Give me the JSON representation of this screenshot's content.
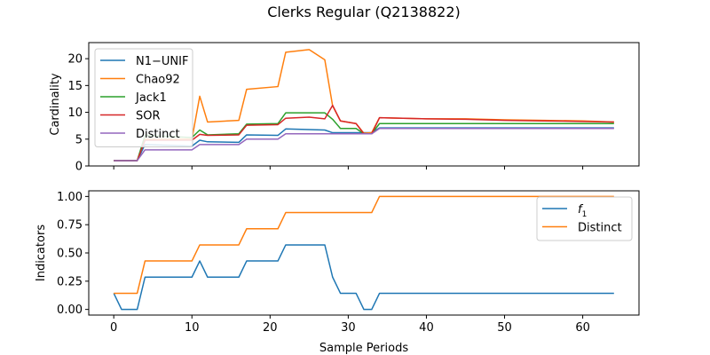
{
  "chart_data": {
    "title": "Clerks Regular (Q2138822)",
    "type": "line",
    "xlabel": "Sample Periods",
    "xlim": [
      -3.2,
      67.2
    ],
    "xticks": [
      0,
      10,
      20,
      30,
      40,
      50,
      60
    ],
    "panels": [
      {
        "ylabel": "Cardinality",
        "ylim": [
          0,
          23
        ],
        "yticks": [
          0,
          5,
          10,
          15,
          20
        ],
        "legend_position": "top-left",
        "series": [
          {
            "name": "N1−UNIF",
            "color": "#1f77b4",
            "x": [
              0,
              3,
              4,
              10,
              11,
              12,
              16,
              17,
              21,
              22,
              27,
              28,
              33,
              34,
              64
            ],
            "y": [
              1,
              1,
              4,
              3.7,
              4.8,
              4.5,
              4.4,
              5.8,
              5.7,
              6.9,
              6.7,
              6.2,
              6.2,
              7.1,
              7.1
            ]
          },
          {
            "name": "Chao92",
            "color": "#ff7f0e",
            "x": [
              0,
              3,
              4,
              10,
              11,
              12,
              16,
              17,
              21,
              22,
              25,
              27,
              28,
              29,
              31,
              32,
              33,
              34,
              40,
              45,
              50,
              55,
              60,
              64
            ],
            "y": [
              1,
              1,
              5,
              5,
              13,
              8.2,
              8.5,
              14.3,
              14.8,
              21.2,
              21.7,
              19.8,
              11.2,
              8.4,
              7.9,
              6.1,
              6.2,
              9,
              8.8,
              8.8,
              8.6,
              8.5,
              8.4,
              8.2
            ]
          },
          {
            "name": "Jack1",
            "color": "#2ca02c",
            "x": [
              0,
              3,
              4,
              10,
              11,
              12,
              16,
              17,
              21,
              22,
              27,
              28,
              29,
              31,
              32,
              33,
              34,
              64
            ],
            "y": [
              1,
              1,
              5.7,
              5.3,
              6.7,
              5.8,
              6,
              7.8,
              7.9,
              9.9,
              9.9,
              8.7,
              7,
              7,
              6,
              6,
              7.9,
              7.9
            ]
          },
          {
            "name": "SOR",
            "color": "#d62728",
            "x": [
              0,
              3,
              4,
              10,
              11,
              12,
              16,
              17,
              21,
              22,
              25,
              27,
              28,
              29,
              31,
              32,
              33,
              34,
              40,
              45,
              50,
              55,
              60,
              64
            ],
            "y": [
              1,
              1,
              4.8,
              4.8,
              5.9,
              5.7,
              5.8,
              7.6,
              7.7,
              8.9,
              9.1,
              8.8,
              11.3,
              8.4,
              7.9,
              6,
              6,
              9,
              8.8,
              8.7,
              8.5,
              8.4,
              8.3,
              8.2
            ]
          },
          {
            "name": "Distinct",
            "color": "#9467bd",
            "x": [
              0,
              3,
              4,
              10,
              11,
              16,
              17,
              21,
              22,
              27,
              28,
              33,
              34,
              64
            ],
            "y": [
              1,
              1,
              3,
              3,
              4,
              4,
              5,
              5,
              6,
              6,
              6,
              6,
              7,
              7
            ]
          }
        ]
      },
      {
        "ylabel": "Indicators",
        "ylim": [
          -0.05,
          1.05
        ],
        "yticks": [
          0.0,
          0.25,
          0.5,
          0.75,
          1.0
        ],
        "ytick_labels": [
          "0.00",
          "0.25",
          "0.50",
          "0.75",
          "1.00"
        ],
        "legend_position": "top-right",
        "series": [
          {
            "name": "f1",
            "name_main": "f",
            "name_sub": "1",
            "color": "#1f77b4",
            "x": [
              0,
              1,
              3,
              4,
              10,
              11,
              12,
              16,
              17,
              21,
              22,
              27,
              28,
              29,
              31,
              32,
              33,
              34,
              64
            ],
            "y": [
              0.143,
              0,
              0,
              0.286,
              0.286,
              0.429,
              0.286,
              0.286,
              0.429,
              0.429,
              0.571,
              0.571,
              0.286,
              0.143,
              0.143,
              0,
              0,
              0.143,
              0.143
            ]
          },
          {
            "name": "Distinct",
            "color": "#ff7f0e",
            "x": [
              0,
              3,
              4,
              10,
              11,
              16,
              17,
              21,
              22,
              27,
              28,
              33,
              34,
              64
            ],
            "y": [
              0.143,
              0.143,
              0.429,
              0.429,
              0.571,
              0.571,
              0.714,
              0.714,
              0.857,
              0.857,
              0.857,
              0.857,
              1,
              1
            ]
          }
        ]
      }
    ]
  }
}
